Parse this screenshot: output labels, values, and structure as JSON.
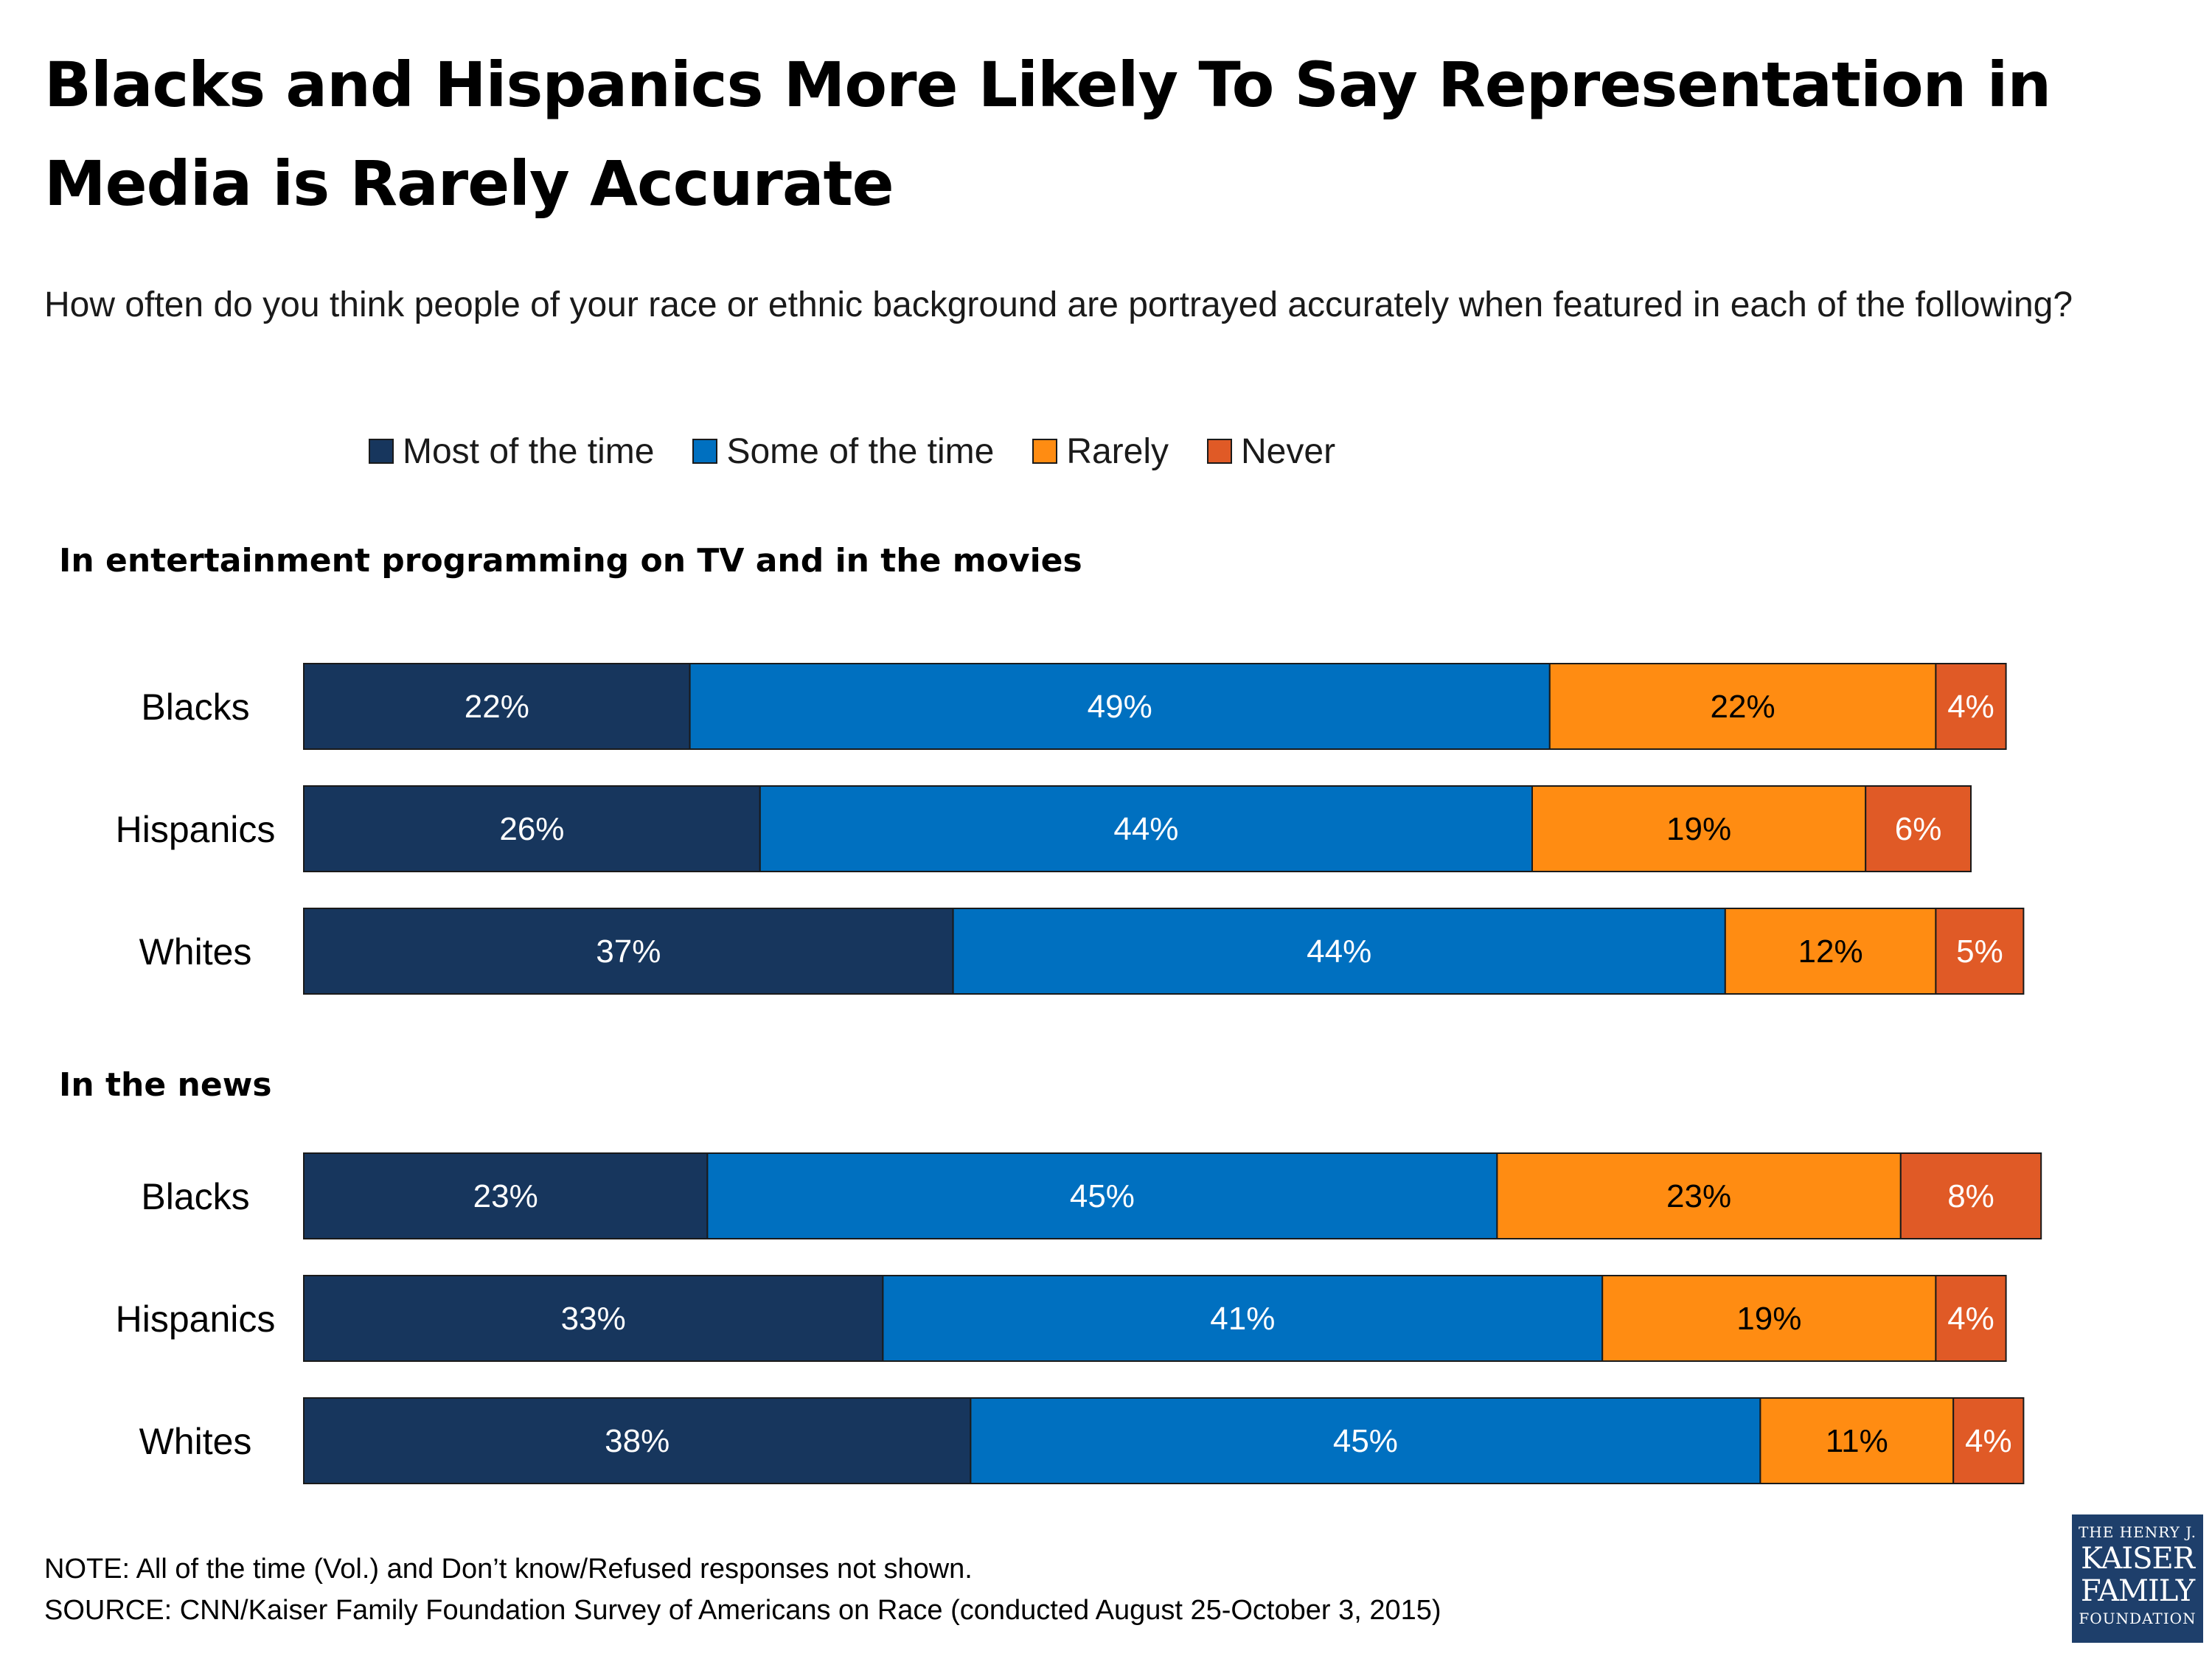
{
  "title": "Blacks and Hispanics More Likely To Say Representation in Media is Rarely Accurate",
  "subtitle": "How often do you think people of your race or ethnic background are portrayed accurately when featured in each of the following?",
  "legend": [
    {
      "label": "Most of the time",
      "color": "#17365d"
    },
    {
      "label": "Some of the time",
      "color": "#0070c0"
    },
    {
      "label": "Rarely",
      "color": "#ff8c12"
    },
    {
      "label": "Never",
      "color": "#e05a26"
    }
  ],
  "chart_data": {
    "type": "bar",
    "orientation": "horizontal",
    "stacked": true,
    "unit": "%",
    "series_names": [
      "Most of the time",
      "Some of the time",
      "Rarely",
      "Never"
    ],
    "series_colors": [
      "#17365d",
      "#0070c0",
      "#ff8c12",
      "#e05a26"
    ],
    "label_colors": [
      "#ffffff",
      "#ffffff",
      "#000000",
      "#ffffff"
    ],
    "groups": [
      {
        "title": "In entertainment programming on TV and in the movies",
        "rows": [
          {
            "category": "Blacks",
            "values": [
              22,
              49,
              22,
              4
            ]
          },
          {
            "category": "Hispanics",
            "values": [
              26,
              44,
              19,
              6
            ]
          },
          {
            "category": "Whites",
            "values": [
              37,
              44,
              12,
              5
            ]
          }
        ]
      },
      {
        "title": "In the news",
        "rows": [
          {
            "category": "Blacks",
            "values": [
              23,
              45,
              23,
              8
            ]
          },
          {
            "category": "Hispanics",
            "values": [
              33,
              41,
              19,
              4
            ]
          },
          {
            "category": "Whites",
            "values": [
              38,
              45,
              11,
              4
            ]
          }
        ]
      }
    ]
  },
  "footer": {
    "note": "NOTE: All of the  time (Vol.) and Don’t know/Refused responses not shown.",
    "source": "SOURCE: CNN/Kaiser Family Foundation Survey of Americans on Race (conducted August 25-October 3, 2015)"
  },
  "logo": {
    "line1": "THE HENRY J.",
    "line2": "KAISER",
    "line3": "FAMILY",
    "line4": "FOUNDATION"
  }
}
